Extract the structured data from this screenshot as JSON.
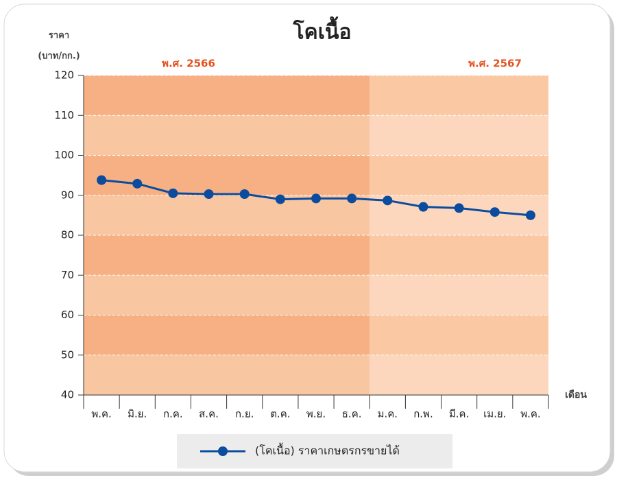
{
  "chart_data": {
    "type": "line",
    "title": "โคเนื้อ",
    "y_axis_label": [
      "ราคา",
      "(บาท/กก.)"
    ],
    "x_axis_label": "เดือน",
    "annotations": [
      "พ.ศ. 2566",
      "พ.ศ. 2567"
    ],
    "categories": [
      "พ.ค.",
      "มิ.ย.",
      "ก.ค.",
      "ส.ค.",
      "ก.ย.",
      "ต.ค.",
      "พ.ย.",
      "ธ.ค.",
      "ม.ค.",
      "ก.พ.",
      "มี.ค.",
      "เม.ย.",
      "พ.ค."
    ],
    "series": [
      {
        "name": "(โคเนื้อ) ราคาเกษตรกรขายได้",
        "color": "#0b4c9e",
        "values": [
          93.8,
          92.9,
          90.5,
          90.3,
          90.3,
          89.0,
          89.2,
          89.2,
          88.7,
          87.1,
          86.8,
          85.8,
          85.0
        ]
      }
    ],
    "ylim": [
      40,
      120
    ],
    "yticks": [
      40,
      50,
      60,
      70,
      80,
      90,
      100,
      110,
      120
    ],
    "grid": true
  }
}
